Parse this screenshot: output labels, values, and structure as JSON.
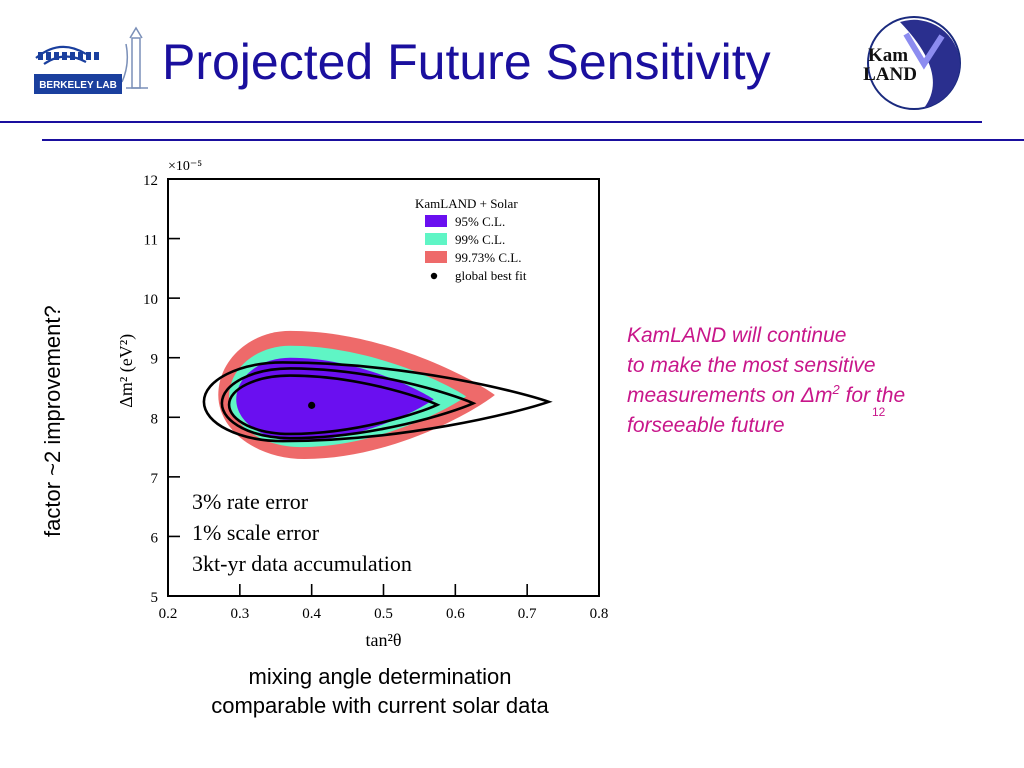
{
  "slide": {
    "title": "Projected Future Sensitivity",
    "logo_left": {
      "text": "BERKELEY LAB",
      "icon": "berkeley-lab-logo"
    },
    "logo_right": {
      "text_line1": "Kam",
      "text_line2": "LAND",
      "icon": "kamland-logo"
    },
    "side_label": "factor ~2 improvement?",
    "caption": [
      "mixing angle determination",
      "comparable with current solar data"
    ],
    "note": {
      "line1": "KamLAND will continue",
      "line2": "to make the most sensitive",
      "line3_pre": "measurements on ",
      "line3_delta": "Δ",
      "line3_m": "m",
      "line3_sup": "2",
      "line3_post": " for the",
      "line4": "forseeable future"
    },
    "page_number": "12",
    "colors": {
      "title": "#1a0f9e",
      "note": "#c8168a"
    }
  },
  "chart_data": {
    "type": "contour",
    "xlabel": "tan²θ",
    "ylabel": "Δm² (eV²)",
    "y_multiplier": "×10⁻⁵",
    "xlim": [
      0.2,
      0.8
    ],
    "ylim": [
      5,
      12
    ],
    "xticks": [
      0.2,
      0.3,
      0.4,
      0.5,
      0.6,
      0.7,
      0.8
    ],
    "yticks": [
      5,
      6,
      7,
      8,
      9,
      10,
      11,
      12
    ],
    "legend": {
      "title": "KamLAND + Solar",
      "position": "top-right",
      "entries": [
        {
          "label": "95% C.L.",
          "color": "#6a0ff0"
        },
        {
          "label": "99% C.L.",
          "color": "#5ff5c5"
        },
        {
          "label": "99.73% C.L.",
          "color": "#ee6a6a"
        },
        {
          "label": "global best fit",
          "color": "#000000",
          "marker": "dot"
        }
      ]
    },
    "regions": [
      {
        "name": "99.73% C.L.",
        "color": "#ee6a6a",
        "bounds": {
          "x_min": 0.27,
          "x_max": 0.655,
          "y_min": 7.3,
          "y_max": 9.45,
          "x_at_top": 0.37,
          "x_at_bottom": 0.39
        }
      },
      {
        "name": "99% C.L.",
        "color": "#5ff5c5",
        "bounds": {
          "x_min": 0.285,
          "x_max": 0.615,
          "y_min": 7.5,
          "y_max": 9.2,
          "x_at_top": 0.37,
          "x_at_bottom": 0.385
        }
      },
      {
        "name": "95% C.L.",
        "color": "#6a0ff0",
        "bounds": {
          "x_min": 0.295,
          "x_max": 0.57,
          "y_min": 7.6,
          "y_max": 9.0,
          "x_at_top": 0.37,
          "x_at_bottom": 0.38
        }
      }
    ],
    "projected_contours": [
      {
        "bounds": {
          "x_min": 0.285,
          "x_max": 0.575,
          "y_min": 7.72,
          "y_max": 8.7,
          "x_at_top": 0.37,
          "x_at_bottom": 0.37
        }
      },
      {
        "bounds": {
          "x_min": 0.275,
          "x_max": 0.625,
          "y_min": 7.65,
          "y_max": 8.82,
          "x_at_top": 0.37,
          "x_at_bottom": 0.37
        }
      },
      {
        "bounds": {
          "x_min": 0.25,
          "x_max": 0.73,
          "y_min": 7.6,
          "y_max": 8.92,
          "x_at_top": 0.36,
          "x_at_bottom": 0.36
        }
      }
    ],
    "best_fit": {
      "x": 0.4,
      "y": 8.2
    },
    "annotations": [
      "3% rate error",
      "1% scale error",
      "3kt-yr data accumulation"
    ]
  }
}
